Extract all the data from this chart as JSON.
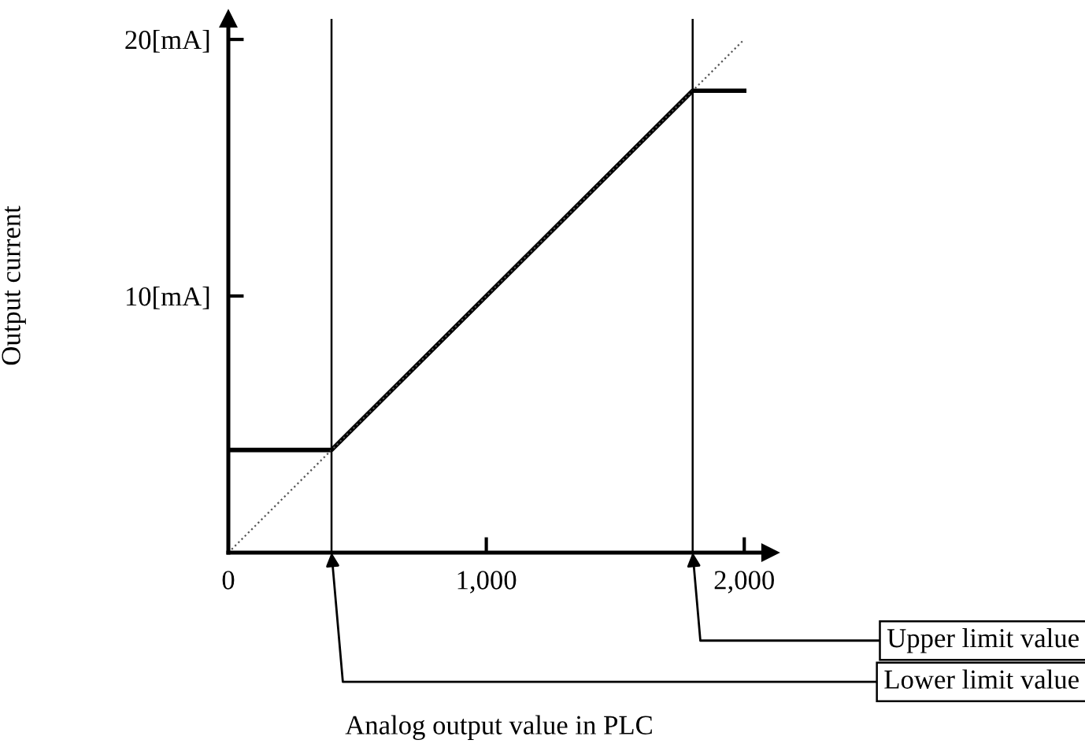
{
  "chart_data": {
    "type": "line",
    "xlabel": "Analog output value in PLC",
    "ylabel": "Output current",
    "xlim": [
      0,
      2100
    ],
    "ylim": [
      0,
      20.8
    ],
    "xticks": [
      0,
      {
        "value": 1000,
        "label": "1,000"
      },
      {
        "value": 2000,
        "label": "2,000"
      }
    ],
    "yticks": [
      {
        "value": 10,
        "label": "10[mA]"
      },
      {
        "value": 20,
        "label": "20[mA]"
      }
    ],
    "series": [
      {
        "x": [
          0,
          400,
          1800,
          2000
        ],
        "values": [
          4,
          4,
          18,
          18
        ],
        "color": "#000000",
        "line_style": "solid"
      },
      {
        "x": [
          0,
          2000
        ],
        "values": [
          0,
          20
        ],
        "color": "#555555",
        "line_style": "dotted"
      }
    ],
    "ref_lines": [
      {
        "axis": "x",
        "value": 1800,
        "label": "Upper limit value",
        "color": "#000000"
      },
      {
        "axis": "x",
        "value": 400,
        "label": "Lower limit value",
        "color": "#000000"
      }
    ],
    "grid": false,
    "legend": false,
    "marker": "none"
  }
}
